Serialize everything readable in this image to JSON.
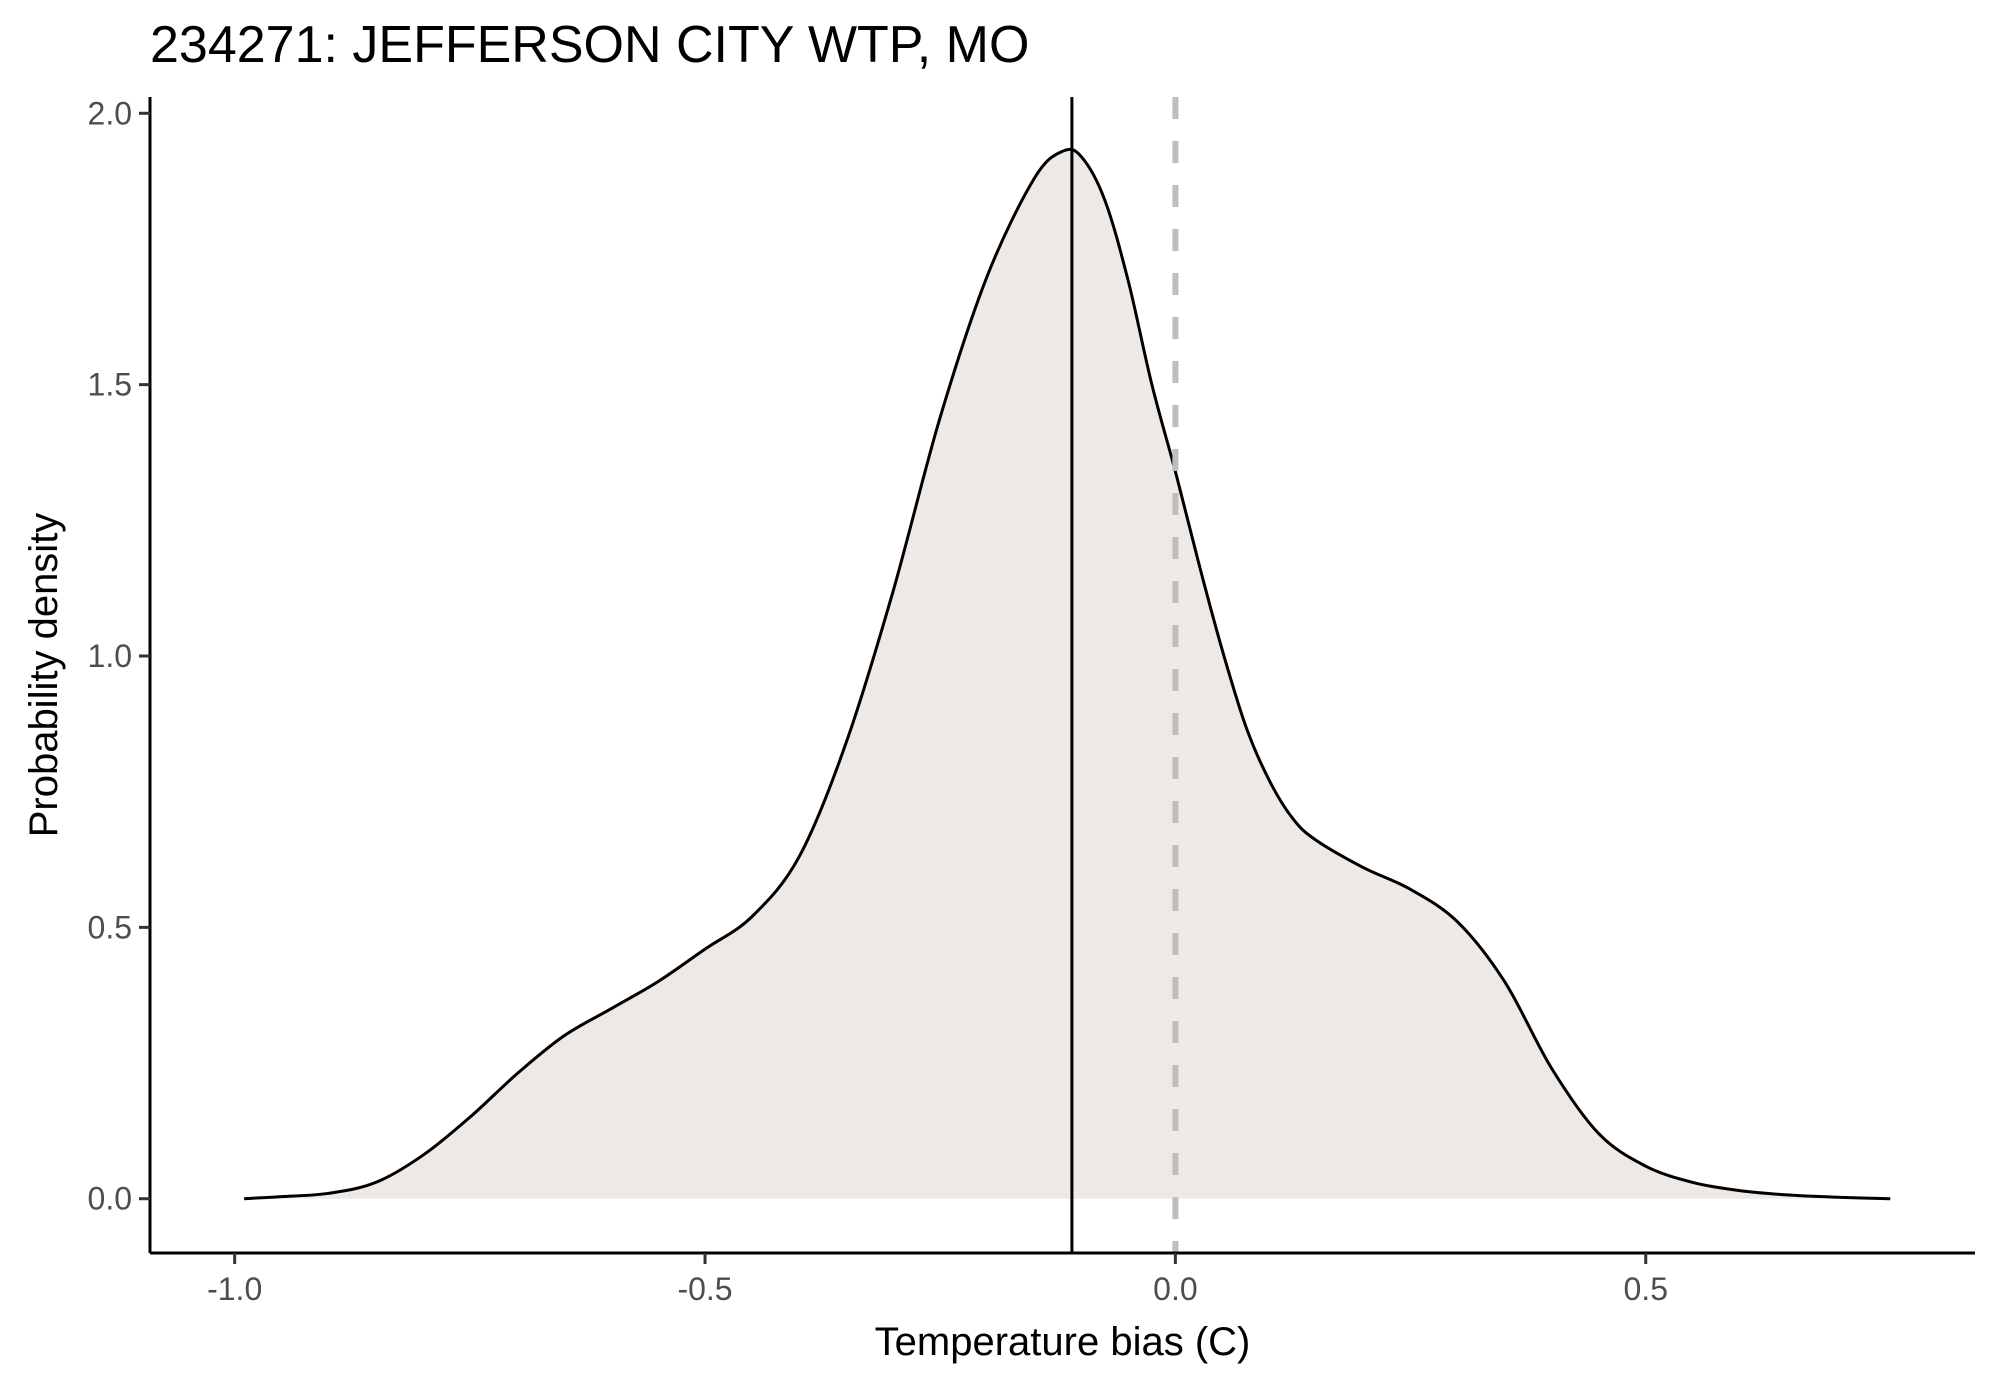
{
  "chart_data": {
    "type": "area",
    "title": "234271: JEFFERSON CITY WTP, MO",
    "xlabel": "Temperature bias (C)",
    "ylabel": "Probability density",
    "xlim": [
      -1.09,
      0.85
    ],
    "ylim": [
      -0.1,
      2.03
    ],
    "x_ticks": [
      {
        "value": -1.0,
        "label": "-1.0"
      },
      {
        "value": -0.5,
        "label": "-0.5"
      },
      {
        "value": 0.0,
        "label": "0.0"
      },
      {
        "value": 0.5,
        "label": "0.5"
      }
    ],
    "y_ticks": [
      {
        "value": 0.0,
        "label": "0.0"
      },
      {
        "value": 0.5,
        "label": "0.5"
      },
      {
        "value": 1.0,
        "label": "1.0"
      },
      {
        "value": 1.5,
        "label": "1.5"
      },
      {
        "value": 2.0,
        "label": "2.0"
      }
    ],
    "density": {
      "x": [
        -0.99,
        -0.95,
        -0.9,
        -0.85,
        -0.8,
        -0.75,
        -0.7,
        -0.65,
        -0.6,
        -0.55,
        -0.5,
        -0.45,
        -0.4,
        -0.35,
        -0.3,
        -0.25,
        -0.2,
        -0.15,
        -0.12,
        -0.1,
        -0.075,
        -0.05,
        -0.025,
        0.0,
        0.025,
        0.05,
        0.075,
        0.1,
        0.125,
        0.15,
        0.2,
        0.25,
        0.3,
        0.35,
        0.4,
        0.45,
        0.5,
        0.55,
        0.6,
        0.65,
        0.7,
        0.76
      ],
      "y": [
        0.0,
        0.004,
        0.01,
        0.03,
        0.08,
        0.15,
        0.23,
        0.3,
        0.35,
        0.4,
        0.46,
        0.52,
        0.63,
        0.84,
        1.12,
        1.44,
        1.7,
        1.88,
        1.93,
        1.92,
        1.84,
        1.69,
        1.5,
        1.34,
        1.17,
        1.01,
        0.87,
        0.77,
        0.7,
        0.66,
        0.61,
        0.57,
        0.51,
        0.4,
        0.24,
        0.12,
        0.06,
        0.03,
        0.015,
        0.007,
        0.003,
        0.0
      ],
      "fill": "#efe9e6",
      "line": "#000000"
    },
    "vlines": [
      {
        "x": -0.11,
        "style": "solid",
        "color": "#000000"
      },
      {
        "x": 0.0,
        "style": "dashed",
        "color": "#bebebe"
      }
    ],
    "grid": false
  }
}
